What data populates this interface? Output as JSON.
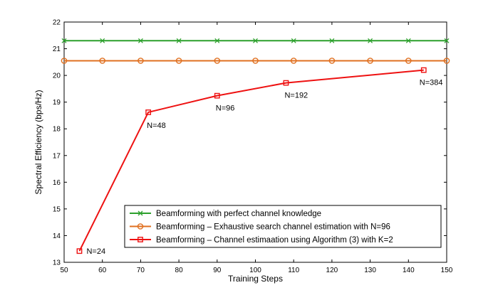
{
  "chart_data": {
    "type": "line",
    "title": "",
    "xlabel": "Training Steps",
    "ylabel": "Spectral Efficiency (bps/Hz)",
    "xlim": [
      50,
      150
    ],
    "ylim": [
      13,
      22
    ],
    "xticks": [
      50,
      60,
      70,
      80,
      90,
      100,
      110,
      120,
      130,
      140,
      150
    ],
    "yticks": [
      13,
      14,
      15,
      16,
      17,
      18,
      19,
      20,
      21,
      22
    ],
    "grid": false,
    "legend_position": "bottom-right",
    "series": [
      {
        "name": "Beamforming with perfect channel knowledge",
        "color": "#2ca02c",
        "marker": "x",
        "x": [
          50,
          60,
          70,
          80,
          90,
          100,
          110,
          120,
          130,
          140,
          150
        ],
        "y": [
          21.3,
          21.3,
          21.3,
          21.3,
          21.3,
          21.3,
          21.3,
          21.3,
          21.3,
          21.3,
          21.3
        ]
      },
      {
        "name": "Beamforming – Exhaustive search channel estimation with N=96",
        "color": "#e07020",
        "marker": "circle",
        "x": [
          50,
          60,
          70,
          80,
          90,
          100,
          110,
          120,
          130,
          140,
          150
        ],
        "y": [
          20.55,
          20.55,
          20.55,
          20.55,
          20.55,
          20.55,
          20.55,
          20.55,
          20.55,
          20.55,
          20.55
        ]
      },
      {
        "name": "Beamforming – Channel estimaation using Algorithm (3) with K=2",
        "color": "#ee1111",
        "marker": "square",
        "x": [
          54,
          72,
          90,
          108,
          144
        ],
        "y": [
          13.42,
          18.62,
          19.24,
          19.72,
          20.2
        ]
      }
    ],
    "annotations": [
      {
        "text": "N=24",
        "x": 54,
        "y": 13.42
      },
      {
        "text": "N=48",
        "x": 72,
        "y": 18.62
      },
      {
        "text": "N=96",
        "x": 90,
        "y": 19.24
      },
      {
        "text": "N=192",
        "x": 108,
        "y": 19.72
      },
      {
        "text": "N=384",
        "x": 144,
        "y": 20.2
      }
    ]
  }
}
